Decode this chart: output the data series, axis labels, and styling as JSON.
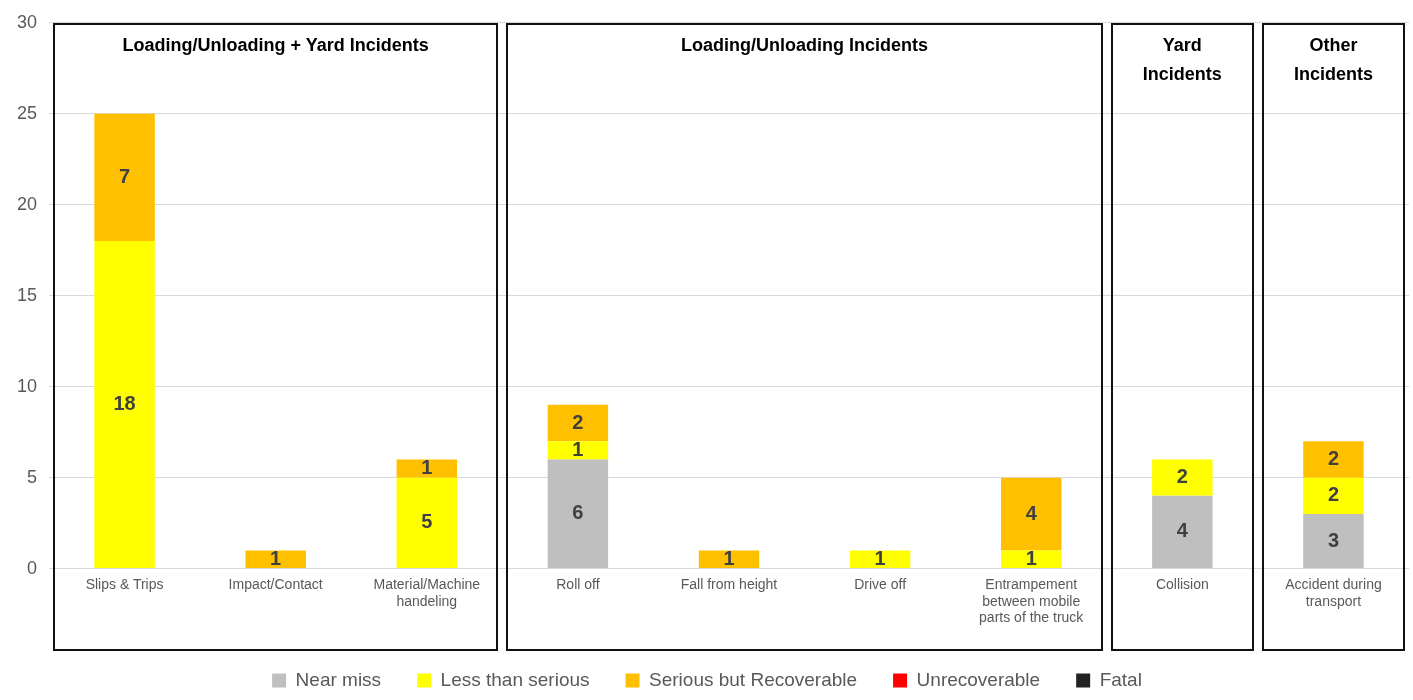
{
  "chart_data": {
    "type": "bar",
    "stacked": true,
    "categories": [
      "Slips & Trips",
      "Impact/Contact",
      "Material/Machine handeling",
      "Roll off",
      "Fall from height",
      "Drive off",
      "Entrampement between mobile parts of the truck",
      "Collision",
      "Accident during transport"
    ],
    "series": [
      {
        "name": "Near miss",
        "color": "#bfbfbf",
        "values": [
          null,
          null,
          null,
          6,
          null,
          null,
          null,
          4,
          3
        ]
      },
      {
        "name": "Less than serious",
        "color": "#ffff00",
        "values": [
          18,
          null,
          5,
          1,
          null,
          1,
          1,
          2,
          2
        ]
      },
      {
        "name": "Serious but Recoverable",
        "color": "#ffc000",
        "values": [
          7,
          1,
          1,
          2,
          1,
          null,
          4,
          null,
          2
        ]
      },
      {
        "name": "Unrecoverable",
        "color": "#ff0000",
        "values": [
          null,
          null,
          null,
          null,
          null,
          null,
          null,
          null,
          null
        ]
      },
      {
        "name": "Fatal",
        "color": "#222222",
        "values": [
          null,
          null,
          null,
          null,
          null,
          null,
          null,
          null,
          null
        ]
      }
    ],
    "annotations": [
      "Loading/Unloading + Yard Incidents",
      "Loading/Unloading Incidents",
      "Yard Incidents",
      "Other Incidents"
    ],
    "ylim": [
      0,
      30
    ],
    "yticks": [
      0,
      5,
      10,
      15,
      20,
      25,
      30
    ],
    "grid": "y",
    "legend": "bottom",
    "data_labels": true
  }
}
